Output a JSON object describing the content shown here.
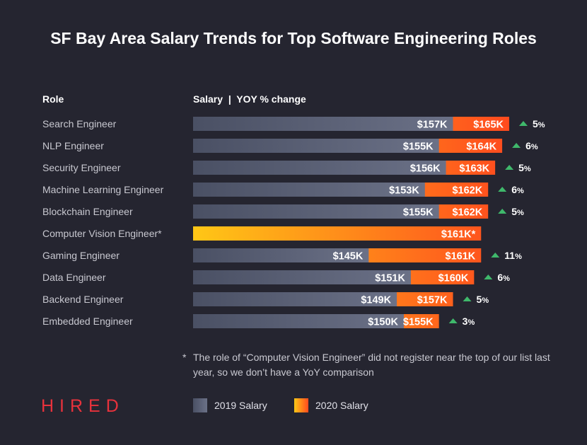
{
  "title": "SF Bay Area Salary Trends for Top Software Engineering Roles",
  "headers": {
    "role": "Role",
    "salary": "Salary  |  YOY % change"
  },
  "colors": {
    "background": "#252530",
    "bar_2019_start": "#4a5064",
    "bar_2019_end": "#6b7187",
    "bar_2020_start": "#ffc716",
    "bar_2020_end": "#ff4a1e",
    "up_arrow": "#3fb86b",
    "brand": "#e8323c"
  },
  "chart_data": {
    "type": "bar",
    "orientation": "horizontal",
    "categories": [
      "Search Engineer",
      "NLP Engineer",
      "Security Engineer",
      "Machine Learning Engineer",
      "Blockchain Engineer",
      "Computer Vision Engineer*",
      "Gaming Engineer",
      "Data Engineer",
      "Backend Engineer",
      "Embedded Engineer"
    ],
    "series": [
      {
        "name": "2019 Salary",
        "values": [
          157,
          155,
          156,
          153,
          155,
          null,
          145,
          151,
          149,
          150
        ],
        "labels": [
          "$157K",
          "$155K",
          "$156K",
          "$153K",
          "$155K",
          "",
          "$145K",
          "$151K",
          "$149K",
          "$150K"
        ]
      },
      {
        "name": "2020 Salary",
        "values": [
          165,
          164,
          163,
          162,
          162,
          161,
          161,
          160,
          157,
          155
        ],
        "labels": [
          "$165K",
          "$164K",
          "$163K",
          "$162K",
          "$162K",
          "$161K*",
          "$161K",
          "$160K",
          "$157K",
          "$155K"
        ]
      }
    ],
    "yoy_change": [
      "5%",
      "6%",
      "5%",
      "6%",
      "5%",
      "",
      "11%",
      "6%",
      "5%",
      "3%"
    ],
    "xlim": [
      120,
      165
    ]
  },
  "footnote": {
    "marker": "*",
    "text": "The role of “Computer Vision Engineer” did not register near the top of our list last year, so we don’t have a YoY comparison"
  },
  "brand": "HIRED",
  "legend": {
    "label_2019": "2019 Salary",
    "label_2020": "2020 Salary"
  }
}
